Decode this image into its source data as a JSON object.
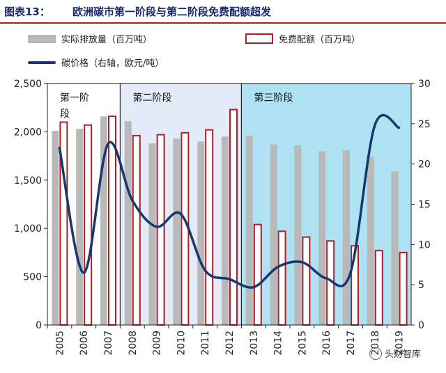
{
  "header": {
    "fig_label": "图表13：",
    "fig_title": "欧洲碳市第一阶段与第二阶段免费配额超发"
  },
  "legend": {
    "actual": "实际排放量（百万吨）",
    "free": "免费配额（百万吨）",
    "price": "碳价格（右轴，欧元/吨）"
  },
  "watermark": "头财智库",
  "colors": {
    "actual_bar": "#b9b9b9",
    "free_bar_border": "#b11d23",
    "price_line": "#17386e",
    "phase2_fill": "#e3ebf9",
    "phase3_fill": "#aee2f3"
  },
  "chart_data": {
    "type": "bar",
    "categories": [
      "2005",
      "2006",
      "2007",
      "2008",
      "2009",
      "2010",
      "2011",
      "2012",
      "2013",
      "2014",
      "2015",
      "2016",
      "2017",
      "2018",
      "2019"
    ],
    "series": [
      {
        "name": "实际排放量（百万吨）",
        "type": "bar",
        "axis": "left",
        "values": [
          2010,
          2030,
          2160,
          2110,
          1880,
          1930,
          1900,
          1950,
          1960,
          1870,
          1860,
          1800,
          1810,
          1740,
          1590
        ]
      },
      {
        "name": "免费配额（百万吨）",
        "type": "bar",
        "axis": "left",
        "values": [
          2100,
          2070,
          2160,
          1960,
          1970,
          1990,
          2020,
          2230,
          1040,
          970,
          910,
          870,
          820,
          770,
          750
        ]
      },
      {
        "name": "碳价格（右轴，欧元/吨）",
        "type": "line",
        "axis": "right",
        "values": [
          22,
          6.5,
          22.5,
          15.5,
          12.2,
          13.8,
          6.8,
          5.7,
          4.7,
          7.2,
          7.8,
          5.8,
          6.5,
          24.8,
          24.5
        ]
      }
    ],
    "phases": [
      {
        "label_line1": "第一阶",
        "label_line2": "段",
        "from": "2005",
        "to": "2007"
      },
      {
        "label_line1": "第二阶段",
        "label_line2": "",
        "from": "2008",
        "to": "2012"
      },
      {
        "label_line1": "第三阶段",
        "label_line2": "",
        "from": "2013",
        "to": "2019"
      }
    ],
    "y_left": {
      "min": 0,
      "max": 2500,
      "ticks": [
        "0",
        "500",
        "1,000",
        "1,500",
        "2,000",
        "2,500"
      ]
    },
    "y_right": {
      "min": 0,
      "max": 30,
      "ticks": [
        "0",
        "5",
        "10",
        "15",
        "20",
        "25",
        "30"
      ]
    },
    "grid": false,
    "legend_position": "top"
  }
}
